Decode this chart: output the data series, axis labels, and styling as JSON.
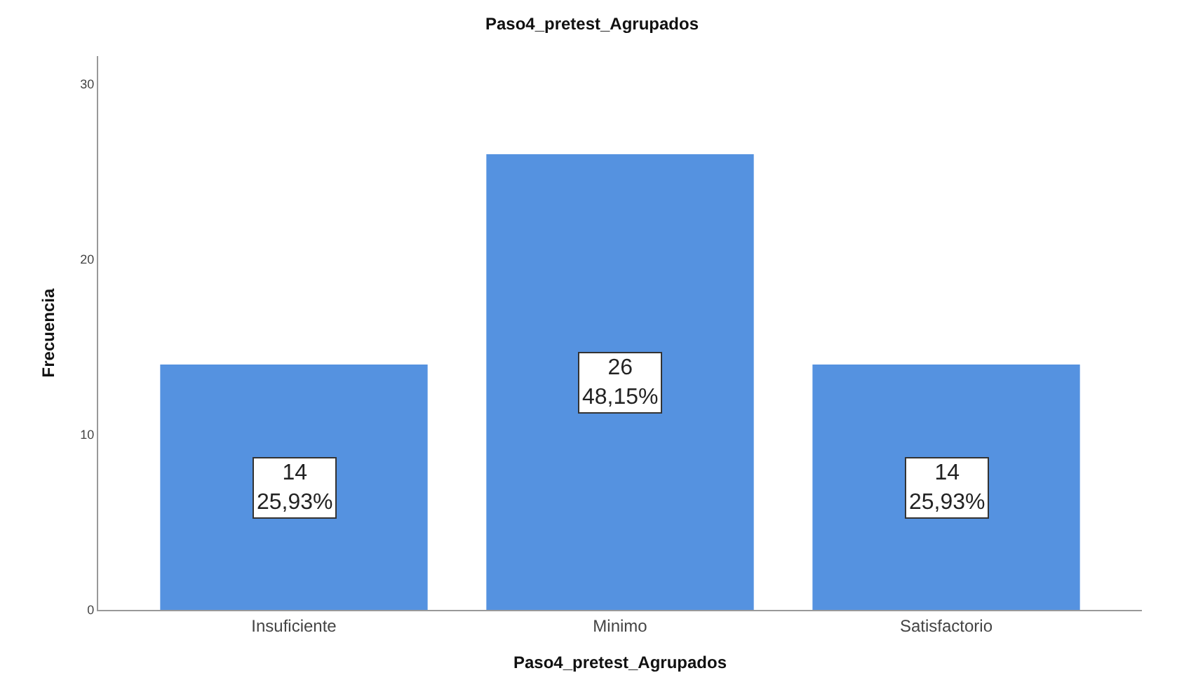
{
  "chart_data": {
    "type": "bar",
    "title": "Paso4_pretest_Agrupados",
    "xlabel": "Paso4_pretest_Agrupados",
    "ylabel": "Frecuencia",
    "categories": [
      "Insuficiente",
      "Minimo",
      "Satisfactorio"
    ],
    "values": [
      14,
      26,
      14
    ],
    "value_labels": [
      "14\n25,93%",
      "26\n48,15%",
      "14\n25,93%"
    ],
    "color": "#5592e0",
    "ylim": [
      0,
      31.6
    ],
    "yticks": [
      0,
      10,
      20,
      30
    ]
  }
}
